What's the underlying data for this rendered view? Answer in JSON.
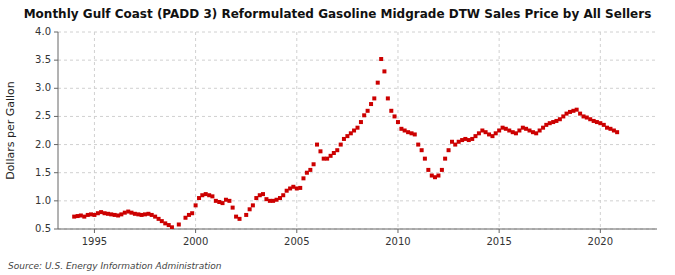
{
  "chart_data": {
    "type": "scatter",
    "title": "Monthly Gulf Coast (PADD 3) Reformulated Gasoline Midgrade DTW Sales Price by All Sellers",
    "ylabel": "Dollars per Gallon",
    "source": "Source: U.S. Energy Information Administration",
    "color": "#cc0000",
    "marker": "square",
    "grid": true,
    "xlim": [
      1993.2,
      2022.8
    ],
    "ylim": [
      0.5,
      4.0
    ],
    "xticks": [
      1995,
      2000,
      2005,
      2010,
      2015,
      2020
    ],
    "yticks": [
      0.5,
      {
        "value": 1.0,
        "label": "1.0"
      },
      1.5,
      {
        "value": 2.0,
        "label": "2.0"
      },
      2.5,
      {
        "value": 3.0,
        "label": "3.0"
      },
      3.5,
      {
        "value": 4.0,
        "label": "4.0"
      }
    ],
    "x": [
      1994.0,
      1994.17,
      1994.33,
      1994.5,
      1994.67,
      1994.83,
      1995.0,
      1995.17,
      1995.33,
      1995.5,
      1995.67,
      1995.83,
      1996.0,
      1996.17,
      1996.33,
      1996.5,
      1996.67,
      1996.83,
      1997.0,
      1997.17,
      1997.33,
      1997.5,
      1997.67,
      1997.83,
      1998.0,
      1998.17,
      1998.33,
      1998.5,
      1998.67,
      1998.83,
      1999.17,
      1999.5,
      1999.67,
      1999.83,
      2000.0,
      2000.17,
      2000.33,
      2000.5,
      2000.67,
      2000.83,
      2001.0,
      2001.17,
      2001.33,
      2001.5,
      2001.67,
      2001.83,
      2002.0,
      2002.17,
      2002.5,
      2002.67,
      2002.83,
      2003.0,
      2003.17,
      2003.33,
      2003.5,
      2003.67,
      2003.83,
      2004.0,
      2004.17,
      2004.33,
      2004.5,
      2004.67,
      2004.83,
      2005.0,
      2005.17,
      2005.33,
      2005.5,
      2005.67,
      2005.83,
      2006.0,
      2006.17,
      2006.33,
      2006.5,
      2006.67,
      2006.83,
      2007.0,
      2007.17,
      2007.33,
      2007.5,
      2007.67,
      2007.83,
      2008.0,
      2008.17,
      2008.33,
      2008.5,
      2008.67,
      2008.83,
      2009.0,
      2009.17,
      2009.33,
      2009.5,
      2009.67,
      2009.83,
      2010.0,
      2010.17,
      2010.33,
      2010.5,
      2010.67,
      2010.83,
      2011.0,
      2011.17,
      2011.33,
      2011.5,
      2011.67,
      2011.83,
      2012.0,
      2012.17,
      2012.33,
      2012.5,
      2012.67,
      2012.83,
      2013.0,
      2013.17,
      2013.33,
      2013.5,
      2013.67,
      2013.83,
      2014.0,
      2014.17,
      2014.33,
      2014.5,
      2014.67,
      2014.83,
      2015.0,
      2015.17,
      2015.33,
      2015.5,
      2015.67,
      2015.83,
      2016.0,
      2016.17,
      2016.33,
      2016.5,
      2016.67,
      2016.83,
      2017.0,
      2017.17,
      2017.33,
      2017.5,
      2017.67,
      2017.83,
      2018.0,
      2018.17,
      2018.33,
      2018.5,
      2018.67,
      2018.83,
      2019.0,
      2019.17,
      2019.33,
      2019.5,
      2019.67,
      2019.83,
      2020.0,
      2020.17,
      2020.33,
      2020.5,
      2020.67,
      2020.83
    ],
    "values": [
      0.72,
      0.73,
      0.74,
      0.72,
      0.75,
      0.76,
      0.75,
      0.78,
      0.8,
      0.78,
      0.77,
      0.76,
      0.75,
      0.74,
      0.76,
      0.79,
      0.81,
      0.79,
      0.77,
      0.76,
      0.75,
      0.76,
      0.77,
      0.75,
      0.72,
      0.68,
      0.64,
      0.6,
      0.57,
      0.53,
      0.58,
      0.7,
      0.75,
      0.78,
      0.92,
      1.05,
      1.1,
      1.12,
      1.1,
      1.08,
      1.0,
      0.98,
      0.96,
      1.02,
      1.0,
      0.88,
      0.72,
      0.68,
      0.75,
      0.85,
      0.92,
      1.05,
      1.1,
      1.12,
      1.03,
      1.0,
      1.0,
      1.02,
      1.05,
      1.1,
      1.18,
      1.22,
      1.25,
      1.22,
      1.23,
      1.4,
      1.5,
      1.55,
      1.65,
      2.0,
      1.88,
      1.75,
      1.75,
      1.8,
      1.85,
      1.9,
      2.0,
      2.1,
      2.15,
      2.2,
      2.25,
      2.3,
      2.4,
      2.52,
      2.6,
      2.72,
      2.82,
      3.1,
      3.52,
      3.3,
      2.82,
      2.6,
      2.5,
      2.4,
      2.28,
      2.25,
      2.22,
      2.2,
      2.18,
      2.0,
      1.9,
      1.75,
      1.55,
      1.45,
      1.42,
      1.45,
      1.55,
      1.75,
      1.9,
      2.05,
      2.0,
      2.05,
      2.08,
      2.1,
      2.08,
      2.1,
      2.15,
      2.2,
      2.25,
      2.22,
      2.18,
      2.15,
      2.2,
      2.25,
      2.3,
      2.28,
      2.25,
      2.22,
      2.2,
      2.25,
      2.3,
      2.28,
      2.25,
      2.22,
      2.2,
      2.25,
      2.3,
      2.35,
      2.38,
      2.4,
      2.42,
      2.45,
      2.5,
      2.55,
      2.58,
      2.6,
      2.62,
      2.55,
      2.5,
      2.48,
      2.45,
      2.42,
      2.4,
      2.38,
      2.35,
      2.3,
      2.28,
      2.25,
      2.22
    ]
  }
}
